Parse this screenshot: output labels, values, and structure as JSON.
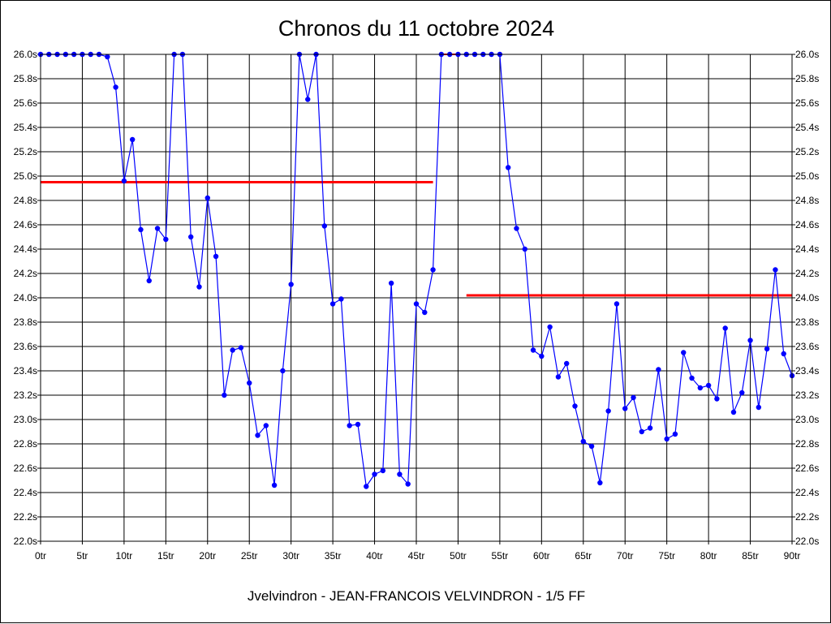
{
  "chart_data": {
    "type": "line",
    "title": "Chronos du 11 octobre 2024",
    "subtitle": "Jvelvindron - JEAN-FRANCOIS VELVINDRON - 1/5 FF",
    "ylim": [
      22.0,
      26.0
    ],
    "xlim": [
      0,
      90
    ],
    "y_ticks": [
      "22.0s",
      "22.2s",
      "22.4s",
      "22.6s",
      "22.8s",
      "23.0s",
      "23.2s",
      "23.4s",
      "23.6s",
      "23.8s",
      "24.0s",
      "24.2s",
      "24.4s",
      "24.6s",
      "24.8s",
      "25.0s",
      "25.2s",
      "25.4s",
      "25.6s",
      "25.8s",
      "26.0s"
    ],
    "x_ticks": [
      "0tr",
      "5tr",
      "10tr",
      "15tr",
      "20tr",
      "25tr",
      "30tr",
      "35tr",
      "40tr",
      "45tr",
      "50tr",
      "55tr",
      "60tr",
      "65tr",
      "70tr",
      "75tr",
      "80tr",
      "85tr",
      "90tr"
    ],
    "grid": true,
    "colors": {
      "series": "#0000ff",
      "highlight": "#ff0000",
      "reference": "#ff0000"
    },
    "series": [
      {
        "points": [
          [
            0,
            26.0
          ],
          [
            1,
            26.0
          ],
          [
            2,
            26.0
          ],
          [
            3,
            26.0
          ],
          [
            4,
            26.0
          ],
          [
            5,
            26.0
          ],
          [
            6,
            26.0
          ],
          [
            7,
            26.0
          ],
          [
            8,
            25.98
          ],
          [
            9,
            25.73
          ],
          [
            10,
            24.96
          ],
          [
            11,
            25.3
          ],
          [
            12,
            24.56
          ],
          [
            13,
            24.14
          ],
          [
            14,
            24.57
          ],
          [
            15,
            24.48
          ],
          [
            16,
            26.0
          ],
          [
            17,
            26.0
          ],
          [
            18,
            24.5
          ],
          [
            19,
            24.09
          ],
          [
            20,
            24.82
          ],
          [
            21,
            24.34
          ],
          [
            22,
            23.2
          ],
          [
            23,
            23.57
          ],
          [
            24,
            23.59
          ],
          [
            25,
            23.3
          ],
          [
            26,
            22.87
          ],
          [
            27,
            22.95
          ],
          [
            28,
            22.46
          ],
          [
            29,
            23.4
          ],
          [
            30,
            24.11
          ],
          [
            31,
            26.0
          ],
          [
            32,
            25.63
          ],
          [
            33,
            26.0
          ],
          [
            34,
            24.59
          ],
          [
            35,
            23.95
          ],
          [
            36,
            23.99
          ],
          [
            37,
            22.95
          ],
          [
            38,
            22.96
          ],
          [
            39,
            22.45
          ],
          [
            40,
            22.55
          ],
          [
            41,
            22.58
          ],
          [
            42,
            24.12
          ],
          [
            43,
            22.55
          ],
          [
            44,
            22.47
          ],
          [
            45,
            23.95
          ],
          [
            46,
            23.88
          ],
          [
            47,
            24.23
          ]
        ]
      },
      {
        "points": [
          [
            48,
            26.0
          ],
          [
            49,
            26.0
          ],
          [
            50,
            26.0
          ]
        ]
      },
      {
        "points": [
          [
            51,
            26.0
          ],
          [
            52,
            26.0
          ],
          [
            53,
            26.0
          ],
          [
            54,
            26.0
          ],
          [
            55,
            26.0
          ],
          [
            56,
            25.07
          ],
          [
            57,
            24.57
          ],
          [
            58,
            24.4
          ],
          [
            59,
            23.57
          ],
          [
            60,
            23.52
          ],
          [
            61,
            23.76
          ],
          [
            62,
            23.35
          ],
          [
            63,
            23.46
          ],
          [
            64,
            23.11
          ],
          [
            65,
            22.82
          ],
          [
            66,
            22.78
          ],
          [
            67,
            22.48
          ],
          [
            68,
            23.07
          ],
          [
            69,
            23.95
          ],
          [
            70,
            23.09
          ],
          [
            71,
            23.18
          ],
          [
            72,
            22.9
          ],
          [
            73,
            22.93
          ],
          [
            74,
            23.41
          ],
          [
            75,
            22.84
          ],
          [
            76,
            22.88
          ],
          [
            77,
            23.55
          ],
          [
            78,
            23.34
          ],
          [
            79,
            23.26
          ],
          [
            80,
            23.28
          ],
          [
            81,
            23.17
          ],
          [
            82,
            23.75
          ],
          [
            83,
            23.06
          ],
          [
            84,
            23.22
          ],
          [
            85,
            23.65
          ],
          [
            86,
            23.1
          ],
          [
            87,
            23.58
          ],
          [
            88,
            24.23
          ],
          [
            89,
            23.54
          ],
          [
            90,
            23.36
          ]
        ]
      }
    ],
    "reference_lines": [
      {
        "x0": 0,
        "x1": 47,
        "y": 24.95
      },
      {
        "x0": 51,
        "x1": 90,
        "y": 24.02
      }
    ]
  }
}
